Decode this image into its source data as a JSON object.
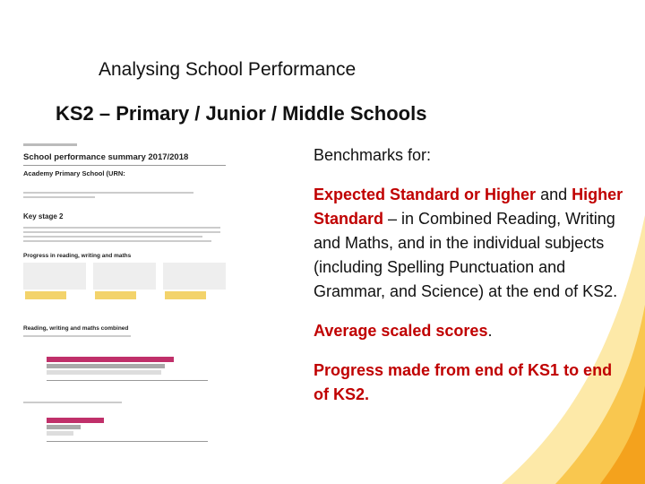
{
  "slide": {
    "title": "Analysing School Performance",
    "subtitle": "KS2 – Primary / Junior / Middle Schools",
    "thumbnail": {
      "heading": "School performance summary 2017/2018",
      "school": "Academy Primary School (URN:",
      "section": "Key stage 2",
      "progress": "Progress in reading, writing and maths",
      "combined": "Reading, writing and maths combined"
    },
    "paragraphs": [
      [
        {
          "text": "Benchmarks for:"
        }
      ],
      [
        {
          "text": "Expected Standard or Higher",
          "color": "#c00000",
          "bold": true
        },
        {
          "text": " and "
        },
        {
          "text": "Higher Standard",
          "color": "#c00000",
          "bold": true
        },
        {
          "text": " – in Combined Reading, Writing and Maths, and in the individual subjects (including Spelling Punctuation and Grammar, and Science) at the end of KS2."
        }
      ],
      [
        {
          "text": "Average scaled scores",
          "color": "#c00000",
          "bold": true
        },
        {
          "text": "."
        }
      ],
      [
        {
          "text": "Progress made from end of KS1 to end of KS2.",
          "color": "#c00000",
          "bold": true
        }
      ]
    ]
  }
}
